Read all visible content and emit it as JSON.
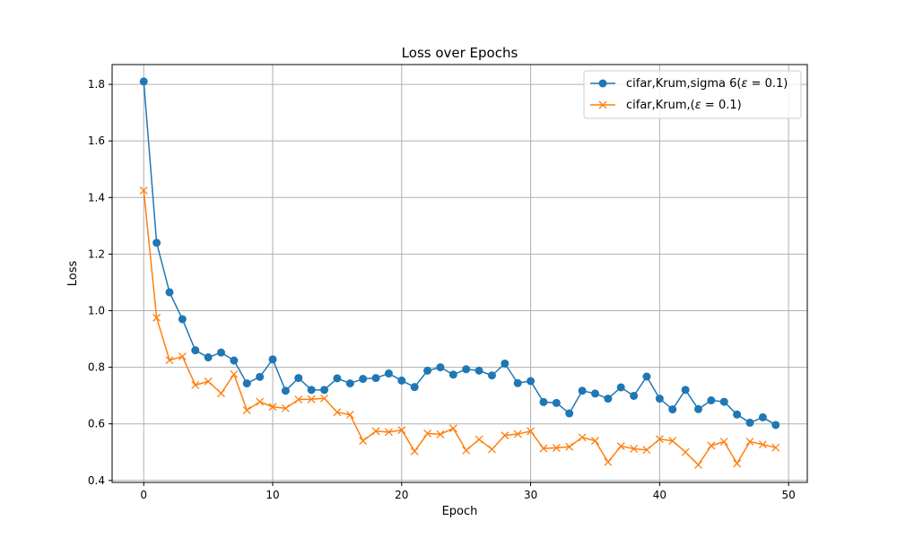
{
  "chart_data": {
    "type": "line",
    "title": "Loss over Epochs",
    "xlabel": "Epoch",
    "ylabel": "Loss",
    "xlim": [
      -2.45,
      51.45
    ],
    "ylim": [
      0.393,
      1.87
    ],
    "xticks": [
      0,
      10,
      20,
      30,
      40,
      50
    ],
    "yticks": [
      0.4,
      0.6,
      0.8,
      1.0,
      1.2,
      1.4,
      1.6,
      1.8
    ],
    "ytick_labels": [
      "0.4",
      "0.6",
      "0.8",
      "1.0",
      "1.2",
      "1.4",
      "1.6",
      "1.8"
    ],
    "grid": true,
    "legend_position": "top-right",
    "x": [
      0,
      1,
      2,
      3,
      4,
      5,
      6,
      7,
      8,
      9,
      10,
      11,
      12,
      13,
      14,
      15,
      16,
      17,
      18,
      19,
      20,
      21,
      22,
      23,
      24,
      25,
      26,
      27,
      28,
      29,
      30,
      31,
      32,
      33,
      34,
      35,
      36,
      37,
      38,
      39,
      40,
      41,
      42,
      43,
      44,
      45,
      46,
      47,
      48,
      49
    ],
    "series": [
      {
        "name": "cifar,Krum,sigma 6(",
        "legend_greek": "ε",
        "legend_tail": " = 0.1)",
        "color": "#1f77b4",
        "marker": "circle",
        "values": [
          1.81,
          1.24,
          1.065,
          0.97,
          0.86,
          0.835,
          0.852,
          0.824,
          0.743,
          0.766,
          0.828,
          0.717,
          0.762,
          0.72,
          0.72,
          0.761,
          0.743,
          0.759,
          0.762,
          0.778,
          0.753,
          0.73,
          0.788,
          0.8,
          0.774,
          0.793,
          0.788,
          0.771,
          0.813,
          0.744,
          0.751,
          0.677,
          0.674,
          0.637,
          0.717,
          0.707,
          0.689,
          0.729,
          0.699,
          0.767,
          0.689,
          0.651,
          0.72,
          0.652,
          0.683,
          0.678,
          0.633,
          0.604,
          0.623,
          0.596
        ]
      },
      {
        "name": "cifar,Krum,(",
        "legend_greek": "ε",
        "legend_tail": " = 0.1)",
        "color": "#ff7f0e",
        "marker": "x",
        "values": [
          1.425,
          0.975,
          0.825,
          0.838,
          0.737,
          0.75,
          0.708,
          0.775,
          0.648,
          0.678,
          0.66,
          0.655,
          0.686,
          0.687,
          0.69,
          0.641,
          0.632,
          0.54,
          0.574,
          0.571,
          0.578,
          0.503,
          0.566,
          0.563,
          0.584,
          0.506,
          0.545,
          0.51,
          0.559,
          0.564,
          0.574,
          0.513,
          0.515,
          0.519,
          0.552,
          0.54,
          0.465,
          0.521,
          0.512,
          0.508,
          0.546,
          0.54,
          0.5,
          0.455,
          0.523,
          0.537,
          0.46,
          0.537,
          0.527,
          0.516
        ]
      }
    ]
  }
}
